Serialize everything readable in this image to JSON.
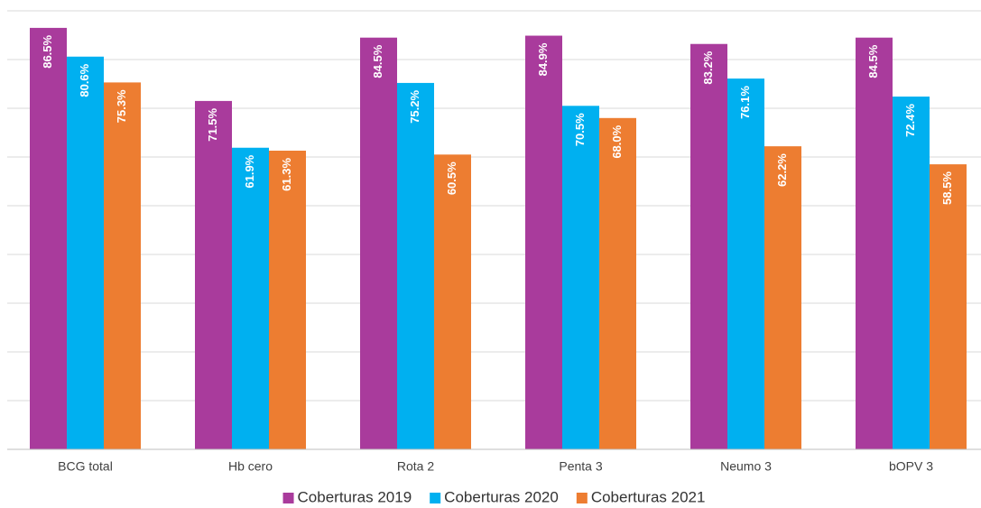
{
  "chart_data": {
    "type": "bar",
    "categories": [
      "BCG total",
      "Hb cero",
      "Rota 2",
      "Penta 3",
      "Neumo 3",
      "bOPV 3"
    ],
    "series": [
      {
        "name": "Coberturas 2019",
        "color": "#a93b9c",
        "values": [
          86.5,
          71.5,
          84.5,
          84.9,
          83.2,
          84.5
        ],
        "value_labels": [
          "86.5%",
          "71.5%",
          "84.5%",
          "84.9%",
          "83.2%",
          "84.5%"
        ]
      },
      {
        "name": "Coberturas 2020",
        "color": "#00b0f0",
        "values": [
          80.6,
          61.9,
          75.2,
          70.5,
          76.1,
          72.4
        ],
        "value_labels": [
          "80.6%",
          "61.9%",
          "75.2%",
          "70.5%",
          "76.1%",
          "72.4%"
        ]
      },
      {
        "name": "Coberturas 2021",
        "color": "#ed7d31",
        "values": [
          75.3,
          61.3,
          60.5,
          68.0,
          62.2,
          58.5
        ],
        "value_labels": [
          "75.3%",
          "61.3%",
          "60.5%",
          "68.0%",
          "62.2%",
          "58.5%"
        ]
      }
    ],
    "ylim": [
      0,
      90
    ],
    "yticks": [
      0,
      10,
      20,
      30,
      40,
      50,
      60,
      70,
      80,
      90
    ],
    "grid": true,
    "legend": "bottom"
  }
}
